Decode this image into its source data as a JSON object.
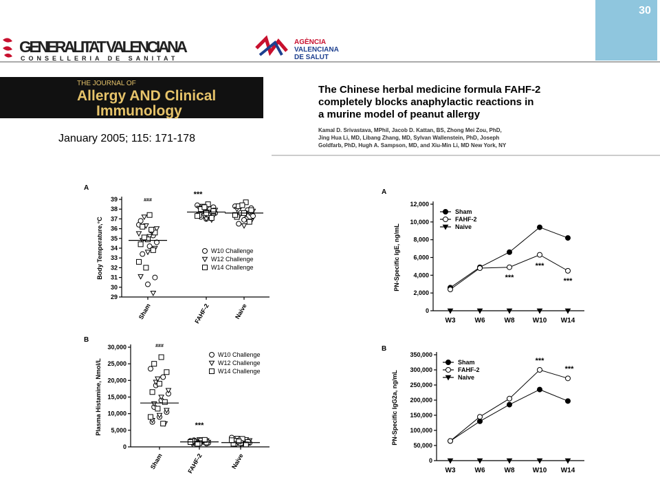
{
  "header": {
    "org_line1": "GENERALITAT VALENCIANA",
    "org_line2": "CONSELLERIA DE SANITAT",
    "agency_line1": "AGÈNCIA",
    "agency_line2": "VALENCIANA",
    "agency_line3": "DE SALUT",
    "badge": "30"
  },
  "journal": {
    "line1": "THE JOURNAL OF",
    "line2": "Allergy AND Clinical",
    "line3": "Immunology",
    "citation": "January 2005; 115: 171-178"
  },
  "article": {
    "title_lines": [
      "The Chinese herbal medicine formula FAHF-2",
      "completely blocks anaphylactic reactions in",
      "a murine model of peanut allergy"
    ],
    "author_lines": [
      "Kamal D. Srivastava, MPhil, Jacob D. Kattan, BS, Zhong Mei Zou, PhD,",
      "Jing Hua Li, MD, Libang Zhang, MD, Sylvan Wallenstein, PhD, Joseph",
      "Goldfarb, PhD, Hugh A. Sampson, MD, and Xiu-Min Li, MD New York, NY"
    ]
  },
  "chart_data": [
    {
      "type": "strip",
      "label": "A",
      "y_label": "Body Temperature,°C",
      "categories": [
        "Sham",
        "FAHF-2",
        "Naive"
      ],
      "ylim": [
        29,
        39
      ],
      "yticks": [
        29,
        30,
        31,
        32,
        33,
        34,
        35,
        36,
        37,
        38,
        39
      ],
      "means": [
        34.8,
        37.7,
        37.6
      ],
      "annotations": [
        "###",
        "***"
      ],
      "series": [
        {
          "name": "W10 Challenge",
          "marker": "circle",
          "values": [
            [
              36.4,
              35.8,
              35,
              34.6,
              34.2,
              33.4,
              31,
              30.3,
              36.8,
              35.3
            ],
            [
              38.4,
              38,
              37.8,
              37.6,
              37.4,
              37.2,
              38.2,
              37
            ],
            [
              38.3,
              37.9,
              37.6,
              37.3,
              37,
              36.5,
              38.1,
              36.9
            ]
          ]
        },
        {
          "name": "W12 Challenge",
          "marker": "triangle-down",
          "values": [
            [
              37.2,
              36,
              35.2,
              34.8,
              34,
              33.6,
              31.1,
              29.4,
              36.3,
              35.5
            ],
            [
              38.3,
              37.9,
              37.7,
              37.5,
              37.3,
              37,
              38.1,
              36.9
            ],
            [
              38.2,
              37.8,
              37.5,
              37.2,
              36.8,
              36.3,
              38,
              37.6
            ]
          ]
        },
        {
          "name": "W14 Challenge",
          "marker": "square",
          "values": [
            [
              37.4,
              36.2,
              35.6,
              34.9,
              34.4,
              33.8,
              32,
              32.6,
              35.9,
              35.1
            ],
            [
              38.5,
              38,
              37.8,
              37.6,
              37.4,
              37.1,
              38.2,
              37.3
            ],
            [
              38.7,
              38.3,
              37.9,
              37.6,
              37.2,
              36.7,
              38.4,
              37.4
            ]
          ]
        }
      ]
    },
    {
      "type": "strip",
      "label": "B",
      "y_label": "Plasma Histamine, Nmol/L",
      "categories": [
        "Sham",
        "FAHF-2",
        "Naive"
      ],
      "ylim": [
        0,
        30000
      ],
      "yticks": [
        0,
        {
          "value": 5000,
          "label": "5,000"
        },
        {
          "value": 10000,
          "label": "10,000"
        },
        {
          "value": 15000,
          "label": "15,000"
        },
        {
          "value": 20000,
          "label": "20,000"
        },
        {
          "value": 25000,
          "label": "25,000"
        },
        {
          "value": 30000,
          "label": "30,000"
        }
      ],
      "means": [
        13200,
        1500,
        1300
      ],
      "annotations": [
        "###",
        "***"
      ],
      "series": [
        {
          "name": "W10 Challenge",
          "marker": "circle",
          "values": [
            [
              23500,
              21000,
              18500,
              16000,
              14000,
              12000,
              10500,
              9000,
              7500
            ],
            [
              1800,
              1500,
              1300,
              1200,
              1600,
              2000,
              1000,
              1400
            ],
            [
              2800,
              2000,
              1500,
              1200,
              1000,
              800,
              1700,
              1300
            ]
          ]
        },
        {
          "name": "W12 Challenge",
          "marker": "triangle-down",
          "values": [
            [
              19500,
              17000,
              15000,
              13000,
              11000,
              9500,
              8000,
              7000,
              20500
            ],
            [
              1700,
              1400,
              1250,
              1100,
              1900,
              2200,
              900,
              1500
            ],
            [
              2600,
              1900,
              1400,
              1100,
              900,
              700,
              1600,
              2200
            ]
          ]
        },
        {
          "name": "W14 Challenge",
          "marker": "square",
          "values": [
            [
              27000,
              25000,
              22500,
              19000,
              16500,
              13500,
              11500,
              9000,
              7000
            ],
            [
              1900,
              1600,
              1350,
              1150,
              1750,
              2100,
              950,
              1450
            ],
            [
              2400,
              1800,
              1450,
              1150,
              950,
              750,
              1650,
              2000
            ]
          ]
        }
      ]
    },
    {
      "type": "line",
      "label": "A",
      "y_label": "PN-Specific IgE, ng/mL",
      "categories": [
        "W3",
        "W6",
        "W8",
        "W10",
        "W14"
      ],
      "ylim": [
        0,
        12000
      ],
      "yticks": [
        0,
        {
          "value": 2000,
          "label": "2,000"
        },
        {
          "value": 4000,
          "label": "4,000"
        },
        {
          "value": 6000,
          "label": "6,000"
        },
        {
          "value": 8000,
          "label": "8,000"
        },
        {
          "value": 10000,
          "label": "10,000"
        },
        {
          "value": 12000,
          "label": "12,000"
        }
      ],
      "annotations": [
        "***",
        "***",
        "***"
      ],
      "series": [
        {
          "name": "Sham",
          "marker": "circle",
          "filled": true,
          "values": [
            2600,
            4900,
            6600,
            9400,
            8200
          ]
        },
        {
          "name": "FAHF-2",
          "marker": "circle",
          "filled": false,
          "values": [
            2400,
            4800,
            4900,
            6300,
            4500
          ]
        },
        {
          "name": "Naive",
          "marker": "triangle-down",
          "filled": true,
          "values": [
            0,
            0,
            0,
            0,
            0
          ]
        }
      ]
    },
    {
      "type": "line",
      "label": "B",
      "y_label": "PN-Specific IgG2a, ng/mL",
      "categories": [
        "W3",
        "W6",
        "W8",
        "W10",
        "W14"
      ],
      "ylim": [
        0,
        350000
      ],
      "yticks": [
        0,
        {
          "value": 50000,
          "label": "50,000"
        },
        {
          "value": 100000,
          "label": "100,000"
        },
        {
          "value": 150000,
          "label": "150,000"
        },
        {
          "value": 200000,
          "label": "200,000"
        },
        {
          "value": 250000,
          "label": "250,000"
        },
        {
          "value": 300000,
          "label": "300,000"
        },
        {
          "value": 350000,
          "label": "350,000"
        }
      ],
      "annotations": [
        "***",
        "***"
      ],
      "series": [
        {
          "name": "Sham",
          "marker": "circle",
          "filled": true,
          "values": [
            65000,
            130000,
            185000,
            235000,
            197000
          ]
        },
        {
          "name": "FAHF-2",
          "marker": "circle",
          "filled": false,
          "values": [
            65000,
            145000,
            205000,
            300000,
            272000
          ]
        },
        {
          "name": "Naive",
          "marker": "triangle-down",
          "filled": true,
          "values": [
            0,
            0,
            0,
            0,
            0
          ]
        }
      ]
    }
  ]
}
